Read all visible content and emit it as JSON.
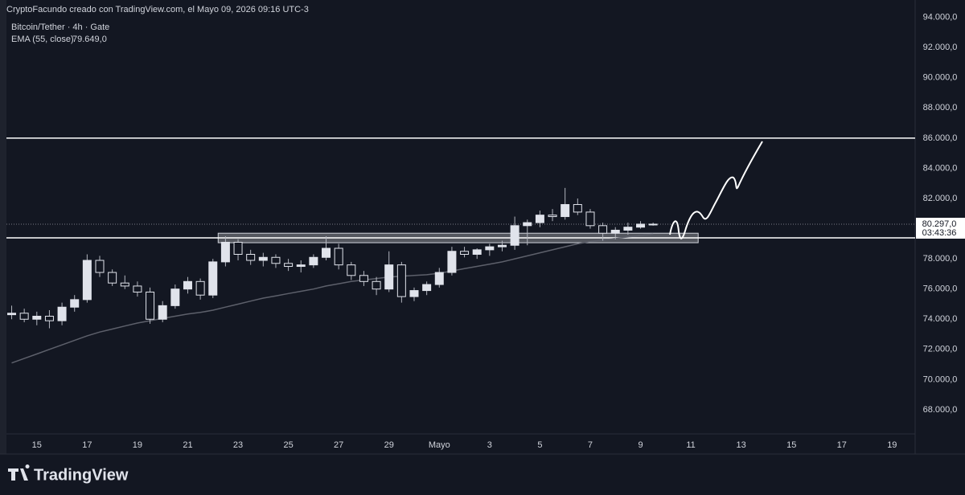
{
  "header": {
    "credit": "CryptoFacundo creado con TradingView.com, el Mayo 09, 2026 09:16 UTC-3",
    "logo": "TradingView"
  },
  "chart_data": {
    "type": "candlestick",
    "title": "Bitcoin/Tether · 4h · Gate",
    "x": [
      "2026-04-14T00:00",
      "2026-04-14T12:00",
      "2026-04-15T00:00",
      "2026-04-15T12:00",
      "2026-04-16T00:00",
      "2026-04-16T12:00",
      "2026-04-17T00:00",
      "2026-04-17T12:00",
      "2026-04-18T00:00",
      "2026-04-18T12:00",
      "2026-04-19T00:00",
      "2026-04-19T12:00",
      "2026-04-20T00:00",
      "2026-04-20T12:00",
      "2026-04-21T00:00",
      "2026-04-21T12:00",
      "2026-04-22T00:00",
      "2026-04-22T12:00",
      "2026-04-23T00:00",
      "2026-04-23T12:00",
      "2026-04-24T00:00",
      "2026-04-24T12:00",
      "2026-04-25T00:00",
      "2026-04-25T12:00",
      "2026-04-26T00:00",
      "2026-04-26T12:00",
      "2026-04-27T00:00",
      "2026-04-27T12:00",
      "2026-04-28T00:00",
      "2026-04-28T12:00",
      "2026-04-29T00:00",
      "2026-04-29T12:00",
      "2026-04-30T00:00",
      "2026-04-30T12:00",
      "2026-05-01T00:00",
      "2026-05-01T12:00",
      "2026-05-02T00:00",
      "2026-05-02T12:00",
      "2026-05-03T00:00",
      "2026-05-03T12:00",
      "2026-05-04T00:00",
      "2026-05-04T12:00",
      "2026-05-05T00:00",
      "2026-05-05T12:00",
      "2026-05-06T00:00",
      "2026-05-06T12:00",
      "2026-05-07T00:00",
      "2026-05-07T12:00",
      "2026-05-08T00:00",
      "2026-05-08T12:00",
      "2026-05-09T00:00",
      "2026-05-09T12:00"
    ],
    "open": [
      74300,
      74400,
      74000,
      74200,
      73900,
      74800,
      75300,
      77900,
      77100,
      76400,
      76200,
      75800,
      74000,
      74900,
      76000,
      76500,
      75600,
      77800,
      79100,
      78300,
      77900,
      78100,
      77700,
      77500,
      77600,
      78100,
      78700,
      77600,
      76900,
      76500,
      76000,
      77600,
      75500,
      75900,
      76300,
      77100,
      78500,
      78300,
      78600,
      78800,
      78900,
      80200,
      80400,
      80900,
      80800,
      81600,
      81100,
      80200,
      79700,
      79900,
      80100,
      80300
    ],
    "high": [
      74900,
      74700,
      74500,
      74600,
      75100,
      75600,
      78300,
      78200,
      77300,
      76900,
      76500,
      76100,
      75200,
      76300,
      76800,
      76700,
      78000,
      79500,
      79300,
      78600,
      78400,
      78300,
      78000,
      77900,
      78300,
      79500,
      79000,
      77800,
      77200,
      76800,
      78500,
      77800,
      76100,
      76500,
      77400,
      78800,
      78800,
      78700,
      79000,
      79200,
      80800,
      80600,
      81200,
      81300,
      82700,
      82000,
      81300,
      80400,
      80100,
      80400,
      80500,
      80400
    ],
    "low": [
      74000,
      73800,
      73600,
      73400,
      73600,
      74500,
      75100,
      76800,
      76200,
      76000,
      75500,
      73700,
      73800,
      74700,
      75700,
      75300,
      75400,
      77500,
      77900,
      77600,
      77500,
      77400,
      77200,
      77100,
      77400,
      77900,
      77300,
      76600,
      76200,
      75600,
      75800,
      75100,
      75200,
      75600,
      76100,
      76900,
      78100,
      78000,
      78200,
      78500,
      78600,
      78900,
      80100,
      80500,
      80600,
      80900,
      80000,
      79200,
      79300,
      79600,
      80000,
      80200
    ],
    "close": [
      74400,
      74000,
      74200,
      73900,
      74800,
      75300,
      77900,
      77100,
      76400,
      76200,
      75800,
      74000,
      74900,
      76000,
      76500,
      75600,
      77800,
      79100,
      78300,
      77900,
      78100,
      77700,
      77500,
      77600,
      78100,
      78700,
      77600,
      76900,
      76500,
      76000,
      77600,
      75500,
      75900,
      76300,
      77100,
      78500,
      78300,
      78600,
      78800,
      78900,
      80200,
      80400,
      80900,
      80800,
      81600,
      81100,
      80200,
      79700,
      79900,
      80100,
      80300,
      80297
    ],
    "up_color": "#e0e3eb",
    "down_color": "#131722",
    "wick_color": "#b2b5be",
    "ema": {
      "name": "EMA (55, close)",
      "color": "#5d606b",
      "value_label": "79.649,0",
      "values": [
        71100,
        71400,
        71700,
        72000,
        72300,
        72600,
        72900,
        73150,
        73350,
        73550,
        73750,
        73900,
        74050,
        74200,
        74350,
        74450,
        74600,
        74800,
        75000,
        75200,
        75400,
        75550,
        75700,
        75850,
        76000,
        76200,
        76350,
        76500,
        76600,
        76700,
        76800,
        76850,
        76900,
        76950,
        77050,
        77200,
        77350,
        77500,
        77650,
        77800,
        78000,
        78200,
        78400,
        78600,
        78800,
        79000,
        79150,
        79250,
        79350,
        79450,
        79550,
        79649
      ]
    },
    "last_price": {
      "value": 80297,
      "label": "80.297,0",
      "countdown": "03:43:36"
    },
    "levels": [
      86000,
      79390
    ],
    "zone": {
      "x": [
        "2026-04-22T05:00",
        "2026-05-11T07:00"
      ],
      "y": [
        79070,
        79700
      ]
    },
    "xlim": [
      "2026-04-13T19:00",
      "2026-05-19T22:00"
    ],
    "xticks": [
      {
        "value": "2026-04-15T00:00",
        "label": "15"
      },
      {
        "value": "2026-04-17T00:00",
        "label": "17"
      },
      {
        "value": "2026-04-19T00:00",
        "label": "19"
      },
      {
        "value": "2026-04-21T00:00",
        "label": "21"
      },
      {
        "value": "2026-04-23T00:00",
        "label": "23"
      },
      {
        "value": "2026-04-25T00:00",
        "label": "25"
      },
      {
        "value": "2026-04-27T00:00",
        "label": "27"
      },
      {
        "value": "2026-04-29T00:00",
        "label": "29"
      },
      {
        "value": "2026-05-01T00:00",
        "label": "Mayo"
      },
      {
        "value": "2026-05-03T00:00",
        "label": "3"
      },
      {
        "value": "2026-05-05T00:00",
        "label": "5"
      },
      {
        "value": "2026-05-07T00:00",
        "label": "7"
      },
      {
        "value": "2026-05-09T00:00",
        "label": "9"
      },
      {
        "value": "2026-05-11T00:00",
        "label": "11"
      },
      {
        "value": "2026-05-13T00:00",
        "label": "13"
      },
      {
        "value": "2026-05-15T00:00",
        "label": "15"
      },
      {
        "value": "2026-05-17T00:00",
        "label": "17"
      },
      {
        "value": "2026-05-19T00:00",
        "label": "19"
      }
    ],
    "ylim": [
      66400,
      94300
    ],
    "yticks": [
      {
        "value": 68000,
        "label": "68.000,0"
      },
      {
        "value": 70000,
        "label": "70.000,0"
      },
      {
        "value": 72000,
        "label": "72.000,0"
      },
      {
        "value": 74000,
        "label": "74.000,0"
      },
      {
        "value": 76000,
        "label": "76.000,0"
      },
      {
        "value": 78000,
        "label": "78.000,0"
      },
      {
        "value": 80000,
        "label": "80.000,0"
      },
      {
        "value": 82000,
        "label": "82.000,0"
      },
      {
        "value": 84000,
        "label": "84.000,0"
      },
      {
        "value": 86000,
        "label": "86.000,0"
      },
      {
        "value": 88000,
        "label": "88.000,0"
      },
      {
        "value": 90000,
        "label": "90.000,0"
      },
      {
        "value": 92000,
        "label": "92.000,0"
      },
      {
        "value": 94000,
        "label": "94.000,0"
      }
    ],
    "grid": false
  }
}
